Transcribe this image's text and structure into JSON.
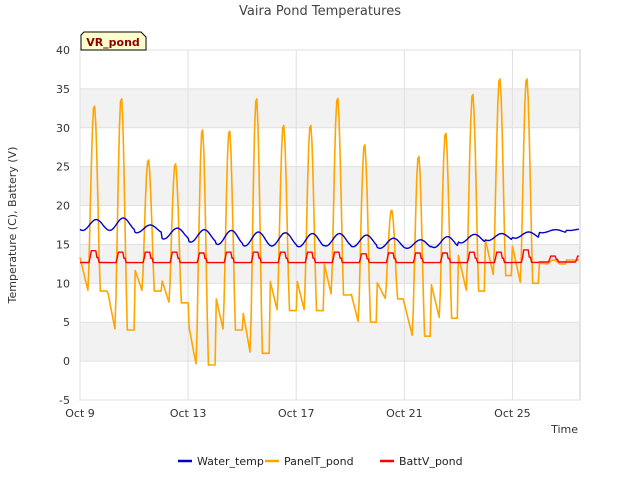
{
  "chart_data": {
    "type": "line",
    "title": "Vaira Pond Temperatures",
    "xlabel": "Time",
    "ylabel": "Temperature (C), Battery (V)",
    "badge": "VR_pond",
    "ylim": [
      -5,
      40
    ],
    "yticks": [
      -5,
      0,
      5,
      10,
      15,
      20,
      25,
      30,
      35,
      40
    ],
    "xlim_days": [
      9,
      27.5
    ],
    "xticks": [
      {
        "day": 9,
        "label": "Oct 9"
      },
      {
        "day": 13,
        "label": "Oct 13"
      },
      {
        "day": 17,
        "label": "Oct 17"
      },
      {
        "day": 21,
        "label": "Oct 21"
      },
      {
        "day": 25,
        "label": "Oct 25"
      }
    ],
    "grid": true,
    "legend_position": "bottom",
    "series": [
      {
        "name": "Water_temp",
        "color": "#0000cc",
        "day_start": 9,
        "daily_min": [
          16.8,
          16.8,
          16.5,
          15.7,
          15.3,
          15.0,
          14.8,
          14.8,
          14.7,
          14.8,
          14.7,
          14.5,
          14.5,
          14.6,
          15.2,
          15.5,
          15.8,
          16.5,
          16.8
        ],
        "daily_max": [
          18.2,
          18.4,
          17.5,
          17.1,
          16.9,
          16.8,
          16.6,
          16.5,
          16.4,
          16.4,
          16.2,
          15.8,
          15.6,
          16.0,
          16.3,
          16.4,
          16.6,
          16.9,
          17.0
        ]
      },
      {
        "name": "PanelT_pond",
        "color": "#ffa500",
        "day_start": 9,
        "daily_min": [
          9.0,
          4.0,
          9.0,
          7.5,
          -0.5,
          4.0,
          1.0,
          6.5,
          6.5,
          8.5,
          5.0,
          8.0,
          3.2,
          5.5,
          9.0,
          11.0,
          10.0,
          12.5,
          13.0
        ],
        "daily_max": [
          33.0,
          34.0,
          26.0,
          25.5,
          30.0,
          29.8,
          34.0,
          30.5,
          30.5,
          34.0,
          28.0,
          19.5,
          26.5,
          29.5,
          34.5,
          36.5,
          36.5,
          13.0,
          13.0
        ]
      },
      {
        "name": "BattV_pond",
        "color": "#ff0000",
        "day_start": 9,
        "daily_min": [
          12.6,
          12.6,
          12.6,
          12.6,
          12.6,
          12.6,
          12.6,
          12.6,
          12.6,
          12.6,
          12.6,
          12.6,
          12.6,
          12.6,
          12.6,
          12.6,
          12.6,
          12.7,
          12.7
        ],
        "daily_max": [
          14.2,
          14.0,
          14.0,
          14.0,
          13.9,
          14.0,
          14.0,
          14.0,
          14.0,
          14.0,
          13.8,
          13.9,
          13.9,
          13.9,
          14.0,
          14.0,
          14.3,
          13.5,
          13.5
        ]
      }
    ]
  }
}
